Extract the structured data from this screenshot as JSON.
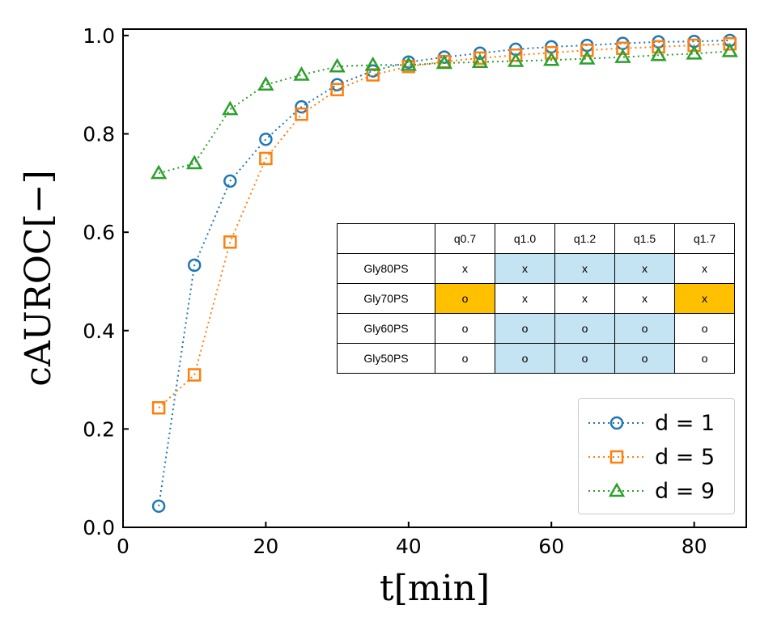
{
  "chart_data": {
    "type": "line",
    "xlabel": "t[min]",
    "ylabel": "cAUROC[−]",
    "xlim": [
      0,
      87.3
    ],
    "ylim": [
      0,
      1.013
    ],
    "xticks": [
      "0",
      "20",
      "40",
      "60",
      "80"
    ],
    "yticks": [
      "0.0",
      "0.2",
      "0.4",
      "0.6",
      "0.8",
      "1.0"
    ],
    "legend_position": "lower-right",
    "x": [
      5,
      10,
      15,
      20,
      25,
      30,
      35,
      40,
      45,
      50,
      55,
      60,
      65,
      70,
      75,
      80,
      85
    ],
    "series": [
      {
        "name": "d = 1",
        "color": "#1f77b4",
        "marker": "circle",
        "values": [
          0.043,
          0.533,
          0.704,
          0.789,
          0.855,
          0.9,
          0.928,
          0.946,
          0.956,
          0.964,
          0.972,
          0.977,
          0.98,
          0.984,
          0.987,
          0.988,
          0.99
        ]
      },
      {
        "name": "d = 5",
        "color": "#ff7f0e",
        "marker": "square",
        "values": [
          0.243,
          0.31,
          0.58,
          0.75,
          0.84,
          0.89,
          0.92,
          0.937,
          0.947,
          0.954,
          0.96,
          0.965,
          0.97,
          0.974,
          0.977,
          0.98,
          0.983
        ]
      },
      {
        "name": "d = 9",
        "color": "#2ca02c",
        "marker": "triangle",
        "values": [
          0.72,
          0.74,
          0.85,
          0.9,
          0.92,
          0.937,
          0.94,
          0.94,
          0.944,
          0.946,
          0.948,
          0.95,
          0.953,
          0.956,
          0.96,
          0.963,
          0.968
        ]
      }
    ],
    "inset_table": {
      "columns": [
        "q0.7",
        "q1.0",
        "q1.2",
        "q1.5",
        "q1.7"
      ],
      "rows": [
        {
          "label": "Gly80PS",
          "cells": [
            "x",
            "x",
            "x",
            "x",
            "x"
          ],
          "fills": [
            "",
            "#c5e4f3",
            "#c5e4f3",
            "#c5e4f3",
            ""
          ]
        },
        {
          "label": "Gly70PS",
          "cells": [
            "o",
            "x",
            "x",
            "x",
            "x"
          ],
          "fills": [
            "#ffc000",
            "",
            "",
            "",
            "#ffc000"
          ]
        },
        {
          "label": "Gly60PS",
          "cells": [
            "o",
            "o",
            "o",
            "o",
            "o"
          ],
          "fills": [
            "",
            "#c5e4f3",
            "#c5e4f3",
            "#c5e4f3",
            ""
          ]
        },
        {
          "label": "Gly50PS",
          "cells": [
            "o",
            "o",
            "o",
            "o",
            "o"
          ],
          "fills": [
            "",
            "#c5e4f3",
            "#c5e4f3",
            "#c5e4f3",
            ""
          ]
        }
      ]
    }
  }
}
